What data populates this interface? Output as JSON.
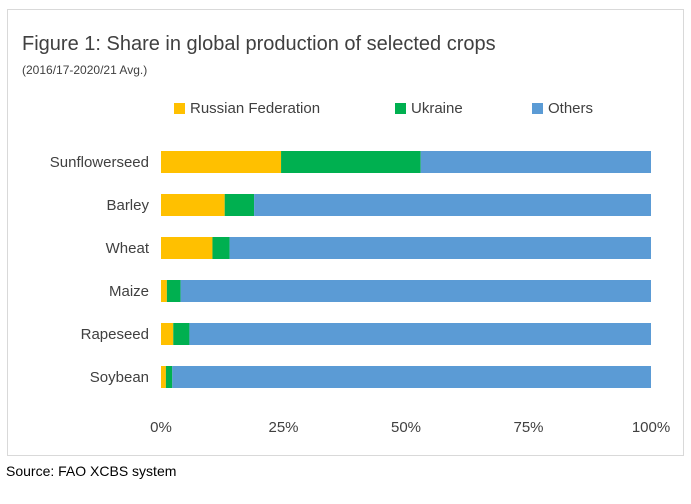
{
  "chart_data": {
    "type": "bar",
    "orientation": "horizontal",
    "stacked": true,
    "title": "Figure 1: Share in global production of selected crops",
    "subtitle": "(2016/17-2020/21 Avg.)",
    "categories": [
      "Sunflowerseed",
      "Barley",
      "Wheat",
      "Maize",
      "Rapeseed",
      "Soybean"
    ],
    "series": [
      {
        "name": "Russian Federation",
        "color": "#FFC000",
        "values": [
          24.5,
          13,
          10.5,
          1.2,
          2.5,
          1
        ]
      },
      {
        "name": "Ukraine",
        "color": "#00B050",
        "values": [
          28.5,
          6,
          3.5,
          2.8,
          3.3,
          1.3
        ]
      },
      {
        "name": "Others",
        "color": "#5B9BD5",
        "values": [
          47,
          81,
          86,
          96,
          94.2,
          97.7
        ]
      }
    ],
    "xlim": [
      0,
      100
    ],
    "xticks": [
      "0%",
      "25%",
      "50%",
      "75%",
      "100%"
    ],
    "legend_position": "top",
    "grid": false
  },
  "source": "Source: FAO XCBS system"
}
